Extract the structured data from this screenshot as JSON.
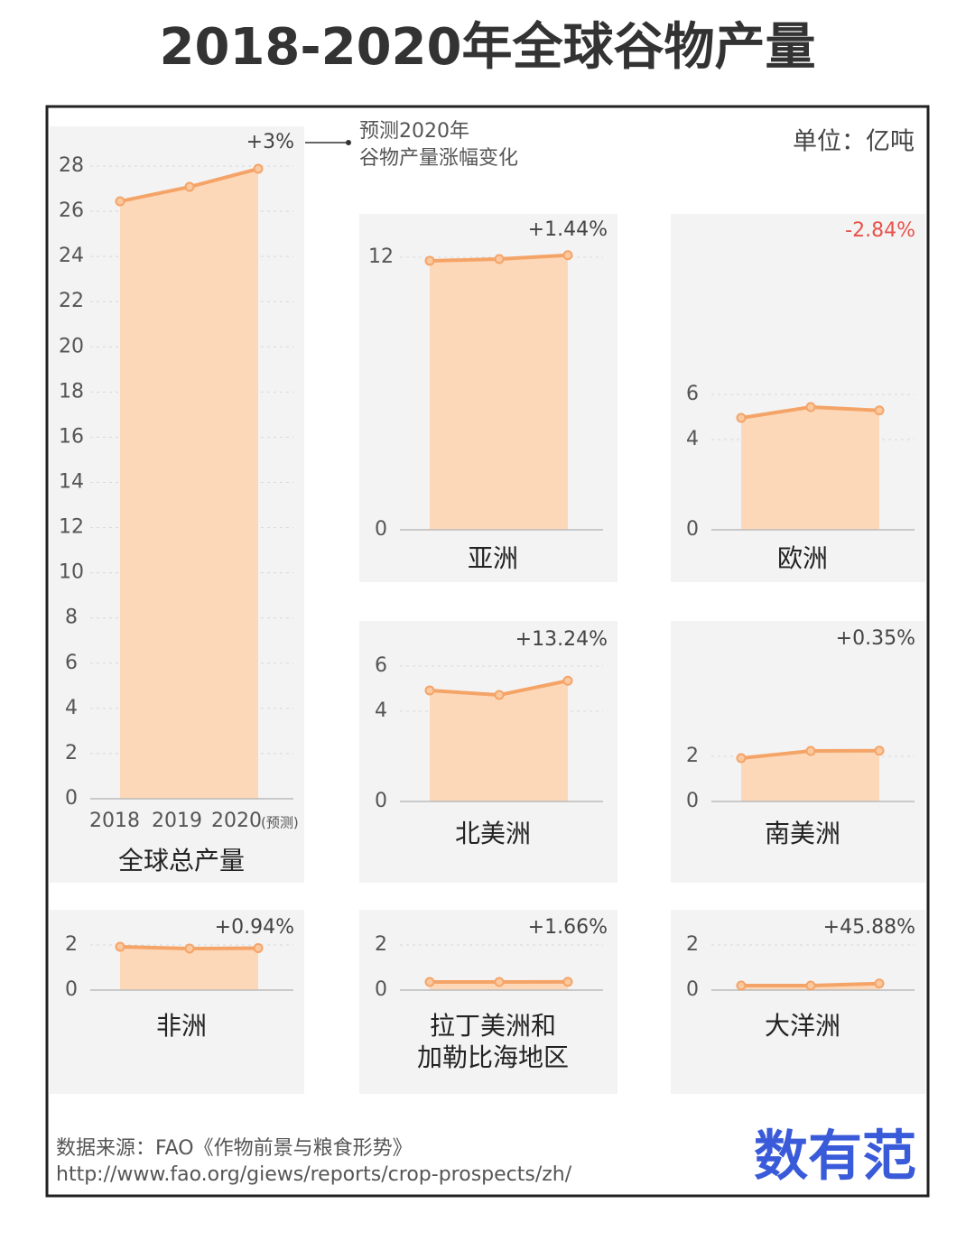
{
  "title": "2018-2020年全球谷物产量",
  "unit": "单位：亿吨",
  "callout": [
    "预测2020年",
    "谷物产量涨幅变化"
  ],
  "source": [
    "数据来源：FAO《作物前景与粮食形势》",
    "http://www.fao.org/giews/reports/crop-prospects/zh/"
  ],
  "logo": "数有范",
  "chart_data": [
    {
      "type": "line",
      "title": [
        "全球总产量"
      ],
      "categories": [
        "2018",
        "2019",
        "2020"
      ],
      "x_note": "(预测)",
      "values": [
        26.44,
        27.08,
        27.88
      ],
      "ylim": [
        0,
        28
      ],
      "yticks": [
        0,
        2,
        4,
        6,
        8,
        10,
        12,
        14,
        16,
        18,
        20,
        22,
        24,
        26,
        28
      ],
      "annotation": "+3%",
      "annotation_color": "#444444",
      "color": "#f5a468",
      "fill_color": "#fdd8b8",
      "grid": true
    },
    {
      "type": "line",
      "title": [
        "亚洲"
      ],
      "values": [
        11.84,
        11.92,
        12.09
      ],
      "ylim": [
        0,
        12
      ],
      "yticks": [
        0,
        12
      ],
      "annotation": "+1.44%",
      "annotation_color": "#444444",
      "color": "#f5a468",
      "fill_color": "#fdd8b8",
      "grid": true
    },
    {
      "type": "line",
      "title": [
        "欧洲"
      ],
      "values": [
        4.96,
        5.44,
        5.29
      ],
      "ylim": [
        0,
        6
      ],
      "yticks": [
        0,
        4,
        6
      ],
      "annotation": "-2.84%",
      "annotation_color": "#e8524a",
      "color": "#f5a468",
      "fill_color": "#fdd8b8",
      "grid": true
    },
    {
      "type": "line",
      "title": [
        "北美洲"
      ],
      "values": [
        4.92,
        4.72,
        5.35
      ],
      "ylim": [
        0,
        6
      ],
      "yticks": [
        0,
        4,
        6
      ],
      "annotation": "+13.24%",
      "annotation_color": "#444444",
      "color": "#f5a468",
      "fill_color": "#fdd8b8",
      "grid": true
    },
    {
      "type": "line",
      "title": [
        "南美洲"
      ],
      "values": [
        1.92,
        2.24,
        2.25
      ],
      "ylim": [
        0,
        4
      ],
      "yticks": [
        0,
        2
      ],
      "annotation": "+0.35%",
      "annotation_color": "#444444",
      "color": "#f5a468",
      "fill_color": "#fdd8b8",
      "grid": true
    },
    {
      "type": "line",
      "title": [
        "非洲"
      ],
      "values": [
        1.92,
        1.84,
        1.86
      ],
      "ylim": [
        0,
        2
      ],
      "yticks": [
        0,
        2
      ],
      "annotation": "+0.94%",
      "annotation_color": "#444444",
      "color": "#f5a468",
      "fill_color": "#fdd8b8",
      "grid": true
    },
    {
      "type": "line",
      "title": [
        "拉丁美洲和",
        "加勒比海地区"
      ],
      "values": [
        0.36,
        0.36,
        0.366
      ],
      "ylim": [
        0,
        2
      ],
      "yticks": [
        0,
        2
      ],
      "annotation": "+1.66%",
      "annotation_color": "#444444",
      "color": "#f5a468",
      "fill_color": "#fdd8b8",
      "grid": true
    },
    {
      "type": "line",
      "title": [
        "大洋洲"
      ],
      "values": [
        0.2,
        0.2,
        0.29
      ],
      "ylim": [
        0,
        2
      ],
      "yticks": [
        0,
        2
      ],
      "annotation": "+45.88%",
      "annotation_color": "#444444",
      "color": "#f5a468",
      "fill_color": "#fdd8b8",
      "grid": true
    }
  ]
}
